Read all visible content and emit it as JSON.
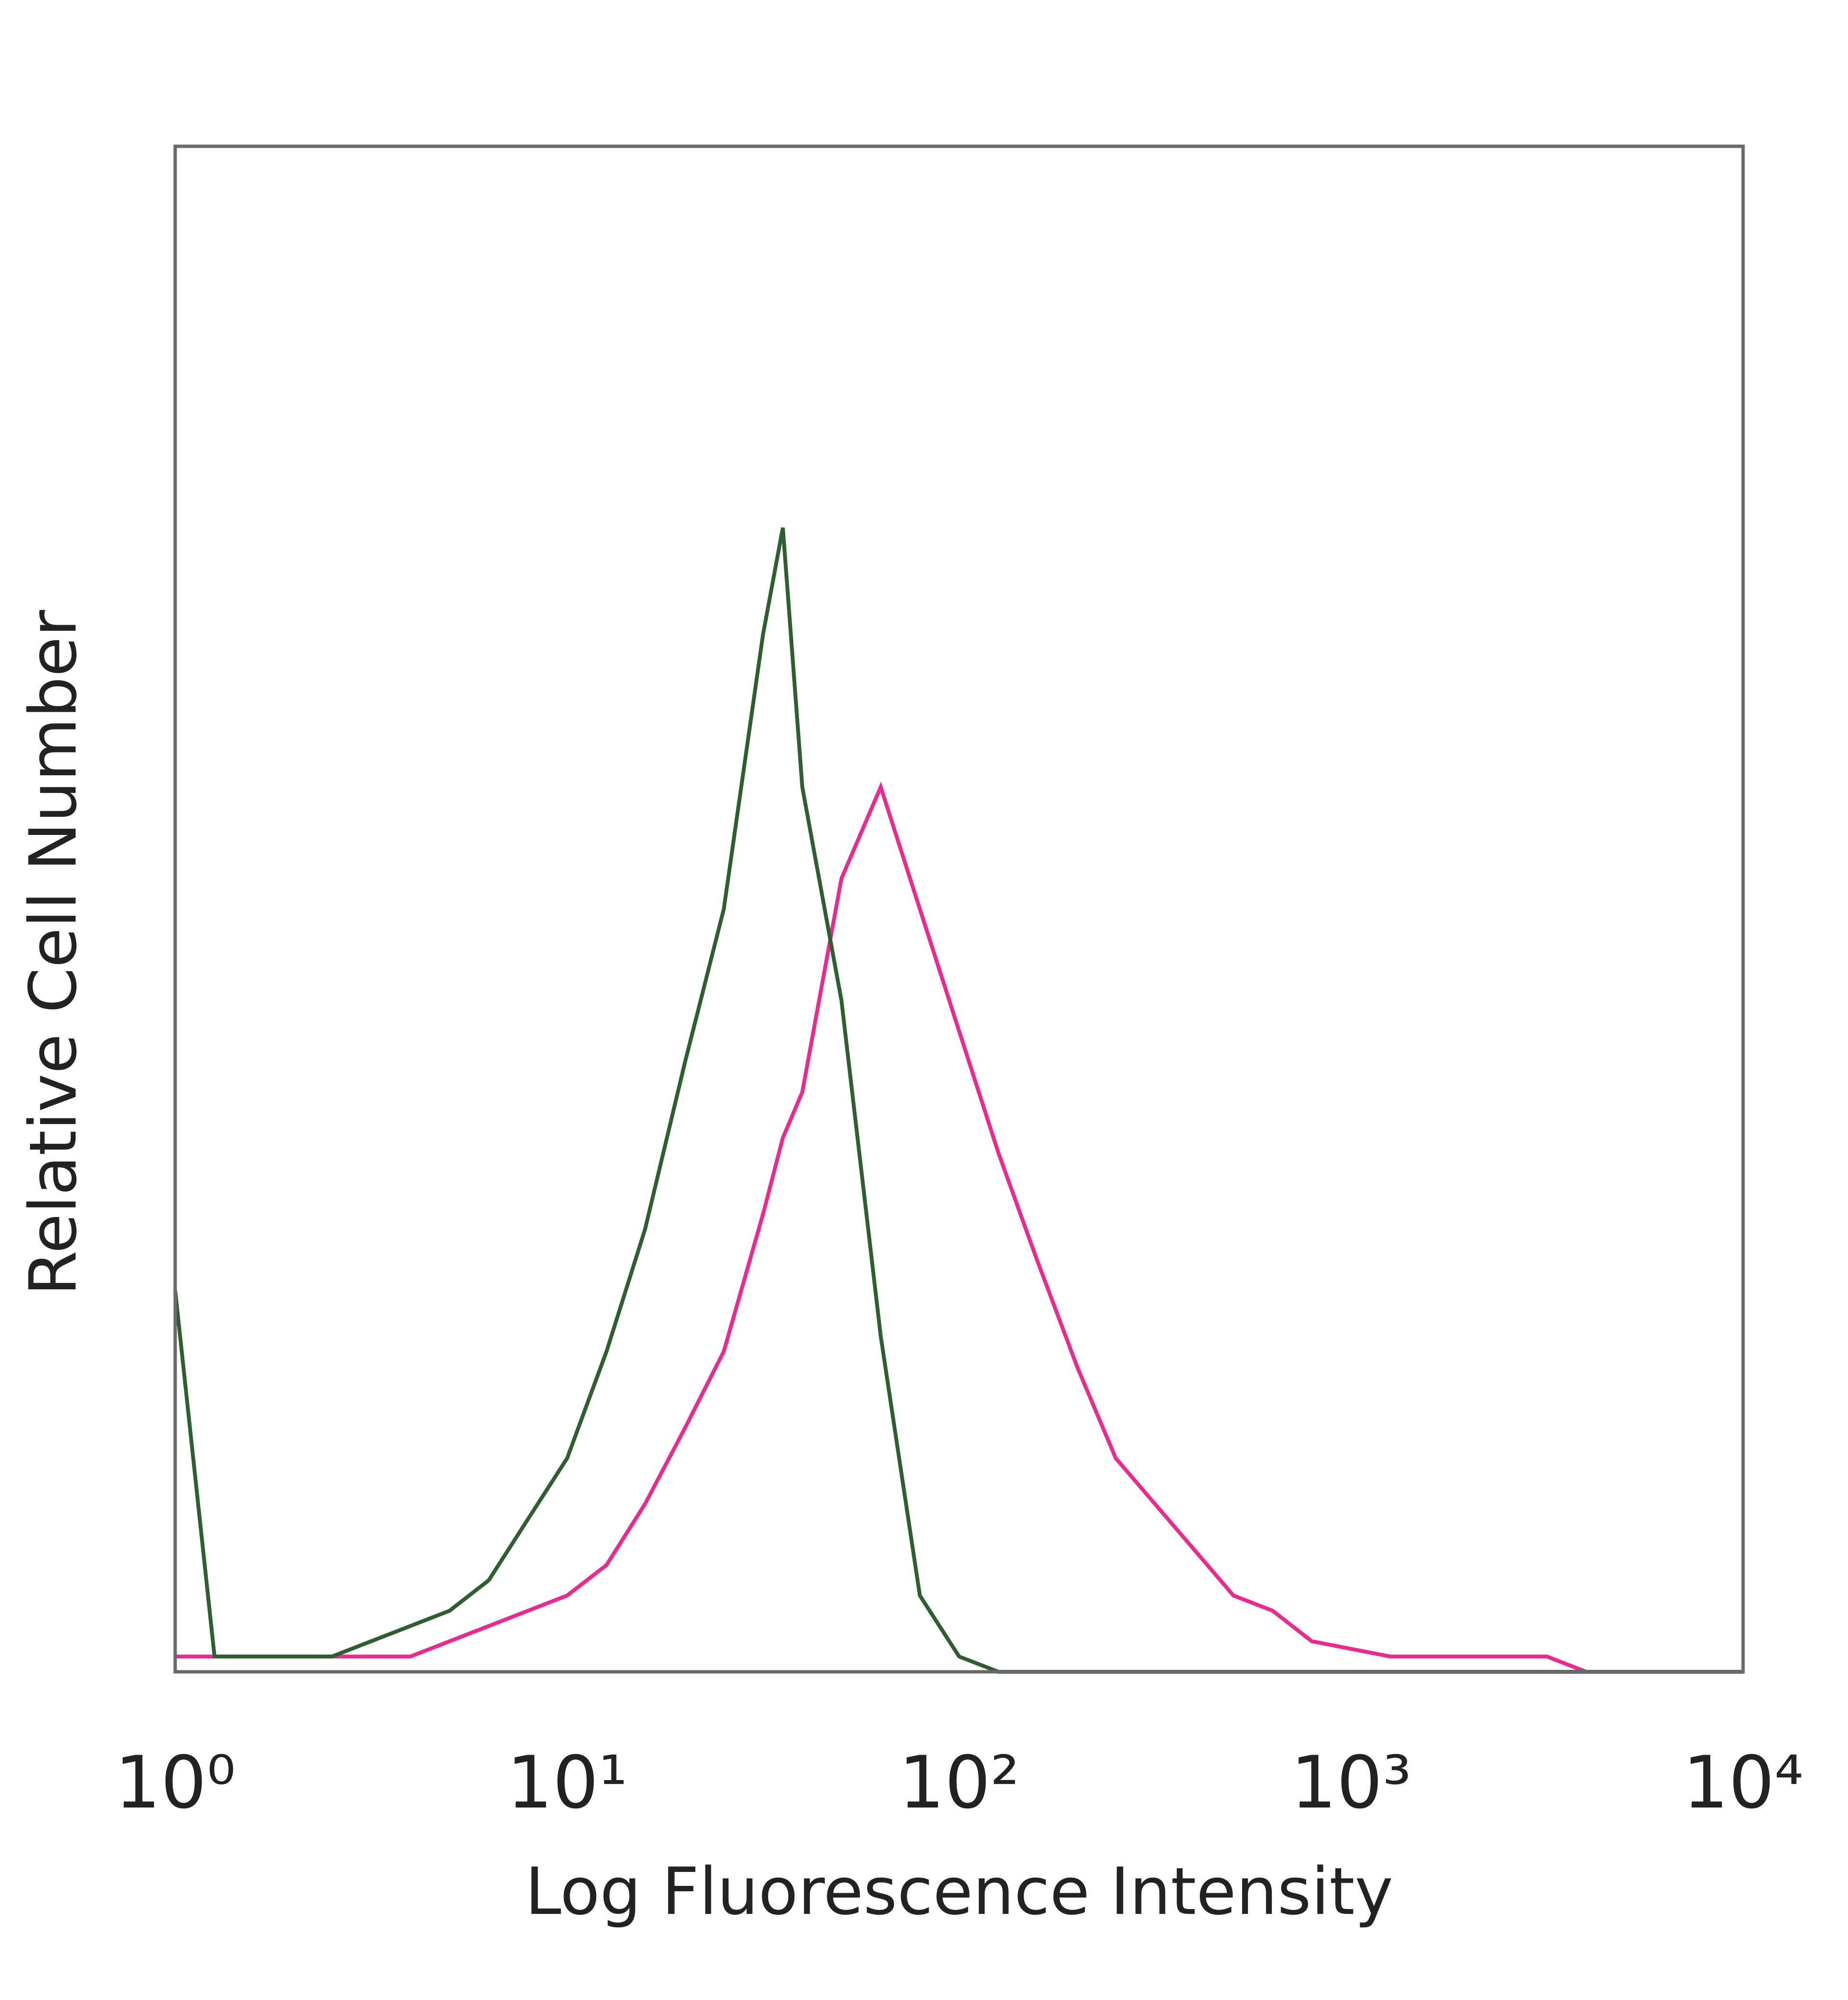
{
  "chart_data": {
    "type": "line",
    "x_label": "Log Fluorescence Intensity",
    "y_label": "Relative Cell Number",
    "x": [
      1,
      1.26,
      1.58,
      2,
      2.51,
      3.16,
      3.98,
      5.01,
      6.31,
      7.94,
      10,
      12.6,
      15.8,
      20,
      25.1,
      31.6,
      35.5,
      39.8,
      50.1,
      63.1,
      79.4,
      100,
      126,
      158,
      200,
      251,
      316,
      398,
      501,
      631,
      794,
      1000,
      1260,
      1580,
      2000,
      2510,
      3160,
      3980,
      5010,
      6310,
      7940,
      10000
    ],
    "series": [
      {
        "color": "#ea2a8e",
        "values": [
          1,
          1,
          1,
          1,
          1,
          1,
          1,
          2,
          3,
          4,
          5,
          7,
          11,
          16,
          21,
          30,
          35,
          38,
          52,
          58,
          50,
          42,
          34,
          27,
          20,
          14,
          11,
          8,
          5,
          4,
          2,
          1.5,
          1,
          1,
          1,
          1,
          1,
          0,
          0,
          0,
          0,
          0
        ]
      },
      {
        "color": "#2f5e31",
        "values": [
          25,
          1,
          1,
          1,
          1,
          2,
          3,
          4,
          6,
          10,
          14,
          21,
          29,
          40,
          50,
          68,
          75,
          58,
          44,
          22,
          5,
          1,
          0,
          0,
          0,
          0,
          0,
          0,
          0,
          0,
          0,
          0,
          0,
          0,
          0,
          0,
          0,
          0,
          0,
          0,
          0,
          0
        ]
      }
    ],
    "xscale": "log",
    "xlim": [
      1,
      10000
    ],
    "xticks": [
      {
        "value": 1,
        "label": "10⁰"
      },
      {
        "value": 10,
        "label": "10¹"
      },
      {
        "value": 100,
        "label": "10²"
      },
      {
        "value": 1000,
        "label": "10³"
      },
      {
        "value": 10000,
        "label": "10⁴"
      }
    ],
    "ylim": [
      0,
      100
    ],
    "grid": false
  }
}
